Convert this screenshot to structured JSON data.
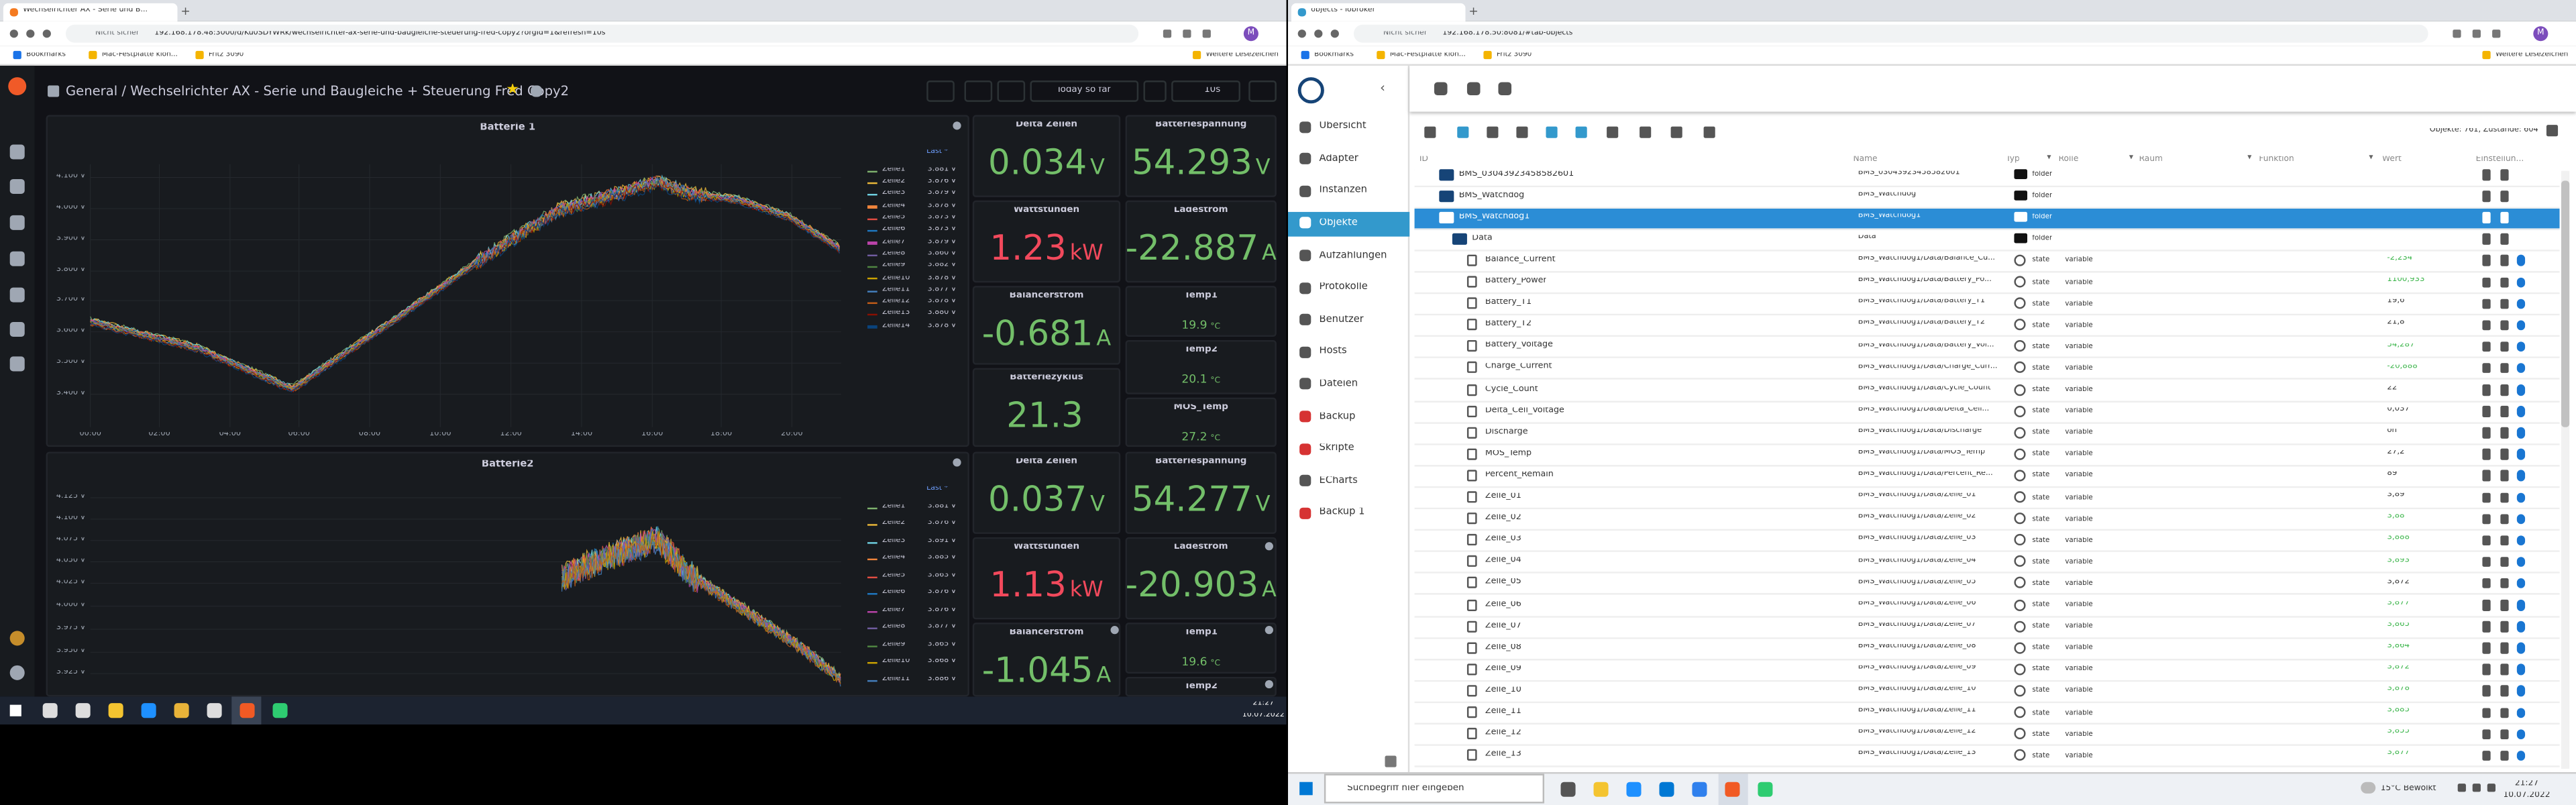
{
  "left_window": {
    "tab_title": "Wechselrichter AX - Serie und B...",
    "security": "Nicht sicher",
    "url": "192.168.178.48:3000/d/Ku0SDYWRk/wechselrichter-ax-serie-und-baugleiche-steuerung-fred-copy2?orgId=1&refresh=10s",
    "bookmarks": [
      "Bookmarks",
      "Mac-Festplatte klon...",
      "Fritz 3090"
    ],
    "other_bookmarks": "Weitere Lesezeichen",
    "profile": "M"
  },
  "grafana": {
    "breadcrumb": "General / Wechselrichter AX - Serie und Baugleiche + Steuerung Fred Copy2",
    "time_range": "Today so far",
    "refresh": "10s",
    "charts": [
      {
        "title": "Batterie 1",
        "legend_header": "Last *",
        "yticks": [
          "4.100 V",
          "4.000 V",
          "3.900 V",
          "3.800 V",
          "3.700 V",
          "3.600 V",
          "3.500 V",
          "3.400 V"
        ],
        "xticks": [
          "00:00",
          "02:00",
          "04:00",
          "06:00",
          "08:00",
          "10:00",
          "12:00",
          "14:00",
          "16:00",
          "18:00",
          "20:00"
        ],
        "series": [
          {
            "name": "Zelle1",
            "last": "3.881 V",
            "color": "#7eb26d"
          },
          {
            "name": "Zelle2",
            "last": "3.876 V",
            "color": "#eab839"
          },
          {
            "name": "Zelle3",
            "last": "3.879 V",
            "color": "#6ed0e0"
          },
          {
            "name": "Zelle4",
            "last": "3.878 V",
            "color": "#ef843c"
          },
          {
            "name": "Zelle5",
            "last": "3.873 V",
            "color": "#e24d42"
          },
          {
            "name": "Zelle6",
            "last": "3.873 V",
            "color": "#1f78c1"
          },
          {
            "name": "Zelle7",
            "last": "3.879 V",
            "color": "#ba43a9"
          },
          {
            "name": "Zelle8",
            "last": "3.860 V",
            "color": "#705da0"
          },
          {
            "name": "Zelle9",
            "last": "3.882 V",
            "color": "#508642"
          },
          {
            "name": "Zelle10",
            "last": "3.878 V",
            "color": "#cca300"
          },
          {
            "name": "Zelle11",
            "last": "3.877 V",
            "color": "#447ebc"
          },
          {
            "name": "Zelle12",
            "last": "3.878 V",
            "color": "#c15c17"
          },
          {
            "name": "Zelle13",
            "last": "3.880 V",
            "color": "#890f02"
          },
          {
            "name": "Zelle14",
            "last": "3.878 V",
            "color": "#0a437c"
          }
        ]
      },
      {
        "title": "Batterie2",
        "legend_header": "Last *",
        "yticks": [
          "4.125 V",
          "4.100 V",
          "4.075 V",
          "4.050 V",
          "4.025 V",
          "4.000 V",
          "3.975 V",
          "3.950 V",
          "3.925 V"
        ],
        "xticks": [],
        "series": [
          {
            "name": "Zelle1",
            "last": "3.881 V",
            "color": "#7eb26d"
          },
          {
            "name": "Zelle2",
            "last": "3.876 V",
            "color": "#eab839"
          },
          {
            "name": "Zelle3",
            "last": "3.891 V",
            "color": "#6ed0e0"
          },
          {
            "name": "Zelle4",
            "last": "3.885 V",
            "color": "#ef843c"
          },
          {
            "name": "Zelle5",
            "last": "3.863 V",
            "color": "#e24d42"
          },
          {
            "name": "Zelle6",
            "last": "3.876 V",
            "color": "#1f78c1"
          },
          {
            "name": "Zelle7",
            "last": "3.876 V",
            "color": "#ba43a9"
          },
          {
            "name": "Zelle8",
            "last": "3.877 V",
            "color": "#705da0"
          },
          {
            "name": "Zelle9",
            "last": "3.865 V",
            "color": "#508642"
          },
          {
            "name": "Zelle10",
            "last": "3.868 V",
            "color": "#cca300"
          },
          {
            "name": "Zelle11",
            "last": "3.886 V",
            "color": "#447ebc"
          },
          {
            "name": "Zelle12",
            "last": "3.864 V",
            "color": "#c15c17"
          }
        ]
      }
    ],
    "stats": [
      {
        "title": "Delta Zellen",
        "value": "0.034",
        "unit": "V",
        "color": "#73bf69"
      },
      {
        "title": "Batteriespannung",
        "value": "54.293",
        "unit": "V",
        "color": "#73bf69"
      },
      {
        "title": "Wattstunden",
        "value": "1.23",
        "unit": "kW",
        "color": "#f2495c"
      },
      {
        "title": "Ladestrom",
        "value": "-22.887",
        "unit": "A",
        "color": "#73bf69"
      },
      {
        "title": "Balancerstrom",
        "value": "-0.681",
        "unit": "A",
        "color": "#73bf69"
      },
      {
        "title": "Temp1",
        "value": "19.9",
        "unit": "°C",
        "color": "#73bf69"
      },
      {
        "title": "Temp2",
        "value": "20.1",
        "unit": "°C",
        "color": "#73bf69"
      },
      {
        "title": "Batteriezyklus",
        "value": "21.3",
        "unit": "",
        "color": "#73bf69"
      },
      {
        "title": "MOS_Temp",
        "value": "27.2",
        "unit": "°C",
        "color": "#73bf69"
      },
      {
        "title": "Delta Zellen",
        "value": "0.037",
        "unit": "V",
        "color": "#73bf69"
      },
      {
        "title": "Batteriespannung",
        "value": "54.277",
        "unit": "V",
        "color": "#73bf69"
      },
      {
        "title": "Wattstunden",
        "value": "1.13",
        "unit": "kW",
        "color": "#f2495c"
      },
      {
        "title": "Ladestrom",
        "value": "-20.903",
        "unit": "A",
        "color": "#73bf69"
      },
      {
        "title": "Balancerstrom",
        "value": "-1.045",
        "unit": "A",
        "color": "#73bf69"
      },
      {
        "title": "Temp1",
        "value": "19.6",
        "unit": "°C",
        "color": "#73bf69"
      },
      {
        "title": "Temp2",
        "value": "",
        "unit": "",
        "color": "#73bf69"
      }
    ]
  },
  "left_taskbar": {
    "time": "21:27",
    "date": "10.07.2022"
  },
  "right_window": {
    "tab_title": "objects - iobroker",
    "security": "Nicht sicher",
    "url": "192.168.178.50:8081/#tab-objects",
    "bookmarks": [
      "Bookmarks",
      "Mac-Festplatte klon...",
      "Fritz 3090"
    ],
    "other_bookmarks": "Weitere Lesezeichen",
    "profile": "M"
  },
  "iobroker": {
    "menu": [
      "Übersicht",
      "Adapter",
      "Instanzen",
      "Objekte",
      "Aufzählungen",
      "Protokolle",
      "Benutzer",
      "Hosts",
      "Dateien",
      "Backup",
      "Skripte",
      "ECharts",
      "Backup 1"
    ],
    "counts": "Objekte: 761, Zustände: 604",
    "columns": [
      "ID",
      "Name",
      "Typ",
      "Rolle",
      "Raum",
      "Funktion",
      "Wert",
      "Einstellun..."
    ],
    "rows": [
      {
        "id": "BMS_03043923458582601",
        "name": "BMS_03043923458582601",
        "type": "folder",
        "role": "",
        "value": "",
        "level": 0
      },
      {
        "id": "BMS_Watchdog",
        "name": "BMS_Watchdog",
        "type": "folder",
        "role": "",
        "value": "",
        "level": 0
      },
      {
        "id": "BMS_Watchdog1",
        "name": "BMS_Watchdog1",
        "type": "folder",
        "role": "",
        "value": "",
        "level": 0,
        "selected": true
      },
      {
        "id": "Data",
        "name": "Data",
        "type": "folder",
        "role": "",
        "value": "",
        "level": 1
      },
      {
        "id": "Balance_Current",
        "name": "BMS_Watchdog1/Data/Balance_Cu...",
        "type": "state",
        "role": "variable",
        "value": "-2,234",
        "value_color": "#3bb54a",
        "level": 2
      },
      {
        "id": "Battery_Power",
        "name": "BMS_Watchdog1/Data/Battery_Po...",
        "type": "state",
        "role": "variable",
        "value": "1100,933",
        "value_color": "#3bb54a",
        "level": 2
      },
      {
        "id": "Battery_T1",
        "name": "BMS_Watchdog1/Data/Battery_T1",
        "type": "state",
        "role": "variable",
        "value": "19,6",
        "value_color": "#333333",
        "level": 2
      },
      {
        "id": "Battery_T2",
        "name": "BMS_Watchdog1/Data/Battery_T2",
        "type": "state",
        "role": "variable",
        "value": "21,8",
        "value_color": "#333333",
        "level": 2
      },
      {
        "id": "Battery_Voltage",
        "name": "BMS_Watchdog1/Data/Battery_Vol...",
        "type": "state",
        "role": "variable",
        "value": "54,287",
        "value_color": "#3bb54a",
        "level": 2
      },
      {
        "id": "Charge_Current",
        "name": "BMS_Watchdog1/Data/Charge_Curr...",
        "type": "state",
        "role": "variable",
        "value": "-20,888",
        "value_color": "#3bb54a",
        "level": 2
      },
      {
        "id": "Cycle_Count",
        "name": "BMS_Watchdog1/Data/Cycle_Count",
        "type": "state",
        "role": "variable",
        "value": "22",
        "value_color": "#333333",
        "level": 2
      },
      {
        "id": "Delta_Cell_Voltage",
        "name": "BMS_Watchdog1/Data/Delta_Cell...",
        "type": "state",
        "role": "variable",
        "value": "0,037",
        "value_color": "#333333",
        "level": 2
      },
      {
        "id": "Discharge",
        "name": "BMS_Watchdog1/Data/Discharge",
        "type": "state",
        "role": "variable",
        "value": "on",
        "value_color": "#333333",
        "level": 2
      },
      {
        "id": "MOS_Temp",
        "name": "BMS_Watchdog1/Data/MOS_Temp",
        "type": "state",
        "role": "variable",
        "value": "27,2",
        "value_color": "#333333",
        "level": 2
      },
      {
        "id": "Percent_Remain",
        "name": "BMS_Watchdog1/Data/Percent_Re...",
        "type": "state",
        "role": "variable",
        "value": "89",
        "value_color": "#333333",
        "level": 2
      },
      {
        "id": "Zelle_01",
        "name": "BMS_Watchdog1/Data/Zelle_01",
        "type": "state",
        "role": "variable",
        "value": "3,89",
        "value_color": "#333333",
        "level": 2
      },
      {
        "id": "Zelle_02",
        "name": "BMS_Watchdog1/Data/Zelle_02",
        "type": "state",
        "role": "variable",
        "value": "3,88",
        "value_color": "#3bb54a",
        "level": 2
      },
      {
        "id": "Zelle_03",
        "name": "BMS_Watchdog1/Data/Zelle_03",
        "type": "state",
        "role": "variable",
        "value": "3,888",
        "value_color": "#3bb54a",
        "level": 2
      },
      {
        "id": "Zelle_04",
        "name": "BMS_Watchdog1/Data/Zelle_04",
        "type": "state",
        "role": "variable",
        "value": "3,893",
        "value_color": "#3bb54a",
        "level": 2
      },
      {
        "id": "Zelle_05",
        "name": "BMS_Watchdog1/Data/Zelle_05",
        "type": "state",
        "role": "variable",
        "value": "3,872",
        "value_color": "#333333",
        "level": 2
      },
      {
        "id": "Zelle_06",
        "name": "BMS_Watchdog1/Data/Zelle_06",
        "type": "state",
        "role": "variable",
        "value": "3,877",
        "value_color": "#3bb54a",
        "level": 2
      },
      {
        "id": "Zelle_07",
        "name": "BMS_Watchdog1/Data/Zelle_07",
        "type": "state",
        "role": "variable",
        "value": "3,865",
        "value_color": "#3bb54a",
        "level": 2
      },
      {
        "id": "Zelle_08",
        "name": "BMS_Watchdog1/Data/Zelle_08",
        "type": "state",
        "role": "variable",
        "value": "3,864",
        "value_color": "#3bb54a",
        "level": 2
      },
      {
        "id": "Zelle_09",
        "name": "BMS_Watchdog1/Data/Zelle_09",
        "type": "state",
        "role": "variable",
        "value": "3,872",
        "value_color": "#3bb54a",
        "level": 2
      },
      {
        "id": "Zelle_10",
        "name": "BMS_Watchdog1/Data/Zelle_10",
        "type": "state",
        "role": "variable",
        "value": "3,878",
        "value_color": "#3bb54a",
        "level": 2
      },
      {
        "id": "Zelle_11",
        "name": "BMS_Watchdog1/Data/Zelle_11",
        "type": "state",
        "role": "variable",
        "value": "3,885",
        "value_color": "#3bb54a",
        "level": 2
      },
      {
        "id": "Zelle_12",
        "name": "BMS_Watchdog1/Data/Zelle_12",
        "type": "state",
        "role": "variable",
        "value": "3,855",
        "value_color": "#3bb54a",
        "level": 2
      },
      {
        "id": "Zelle_13",
        "name": "BMS_Watchdog1/Data/Zelle_13",
        "type": "state",
        "role": "variable",
        "value": "3,877",
        "value_color": "#3bb54a",
        "level": 2
      }
    ]
  },
  "right_taskbar": {
    "search": "Suchbegriff hier eingeben",
    "weather": "15°C Bewölkt",
    "time": "21:27",
    "date": "10.07.2022"
  }
}
